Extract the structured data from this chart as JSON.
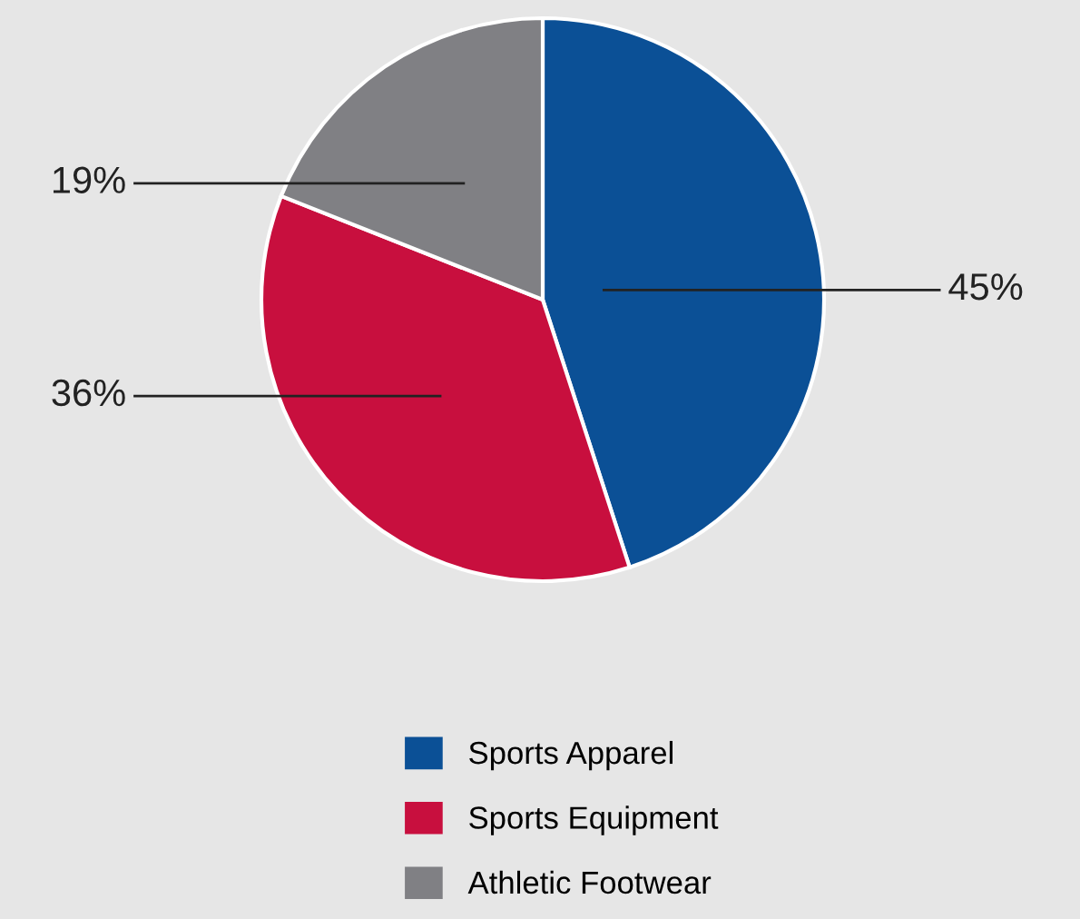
{
  "chart_data": {
    "type": "pie",
    "categories": [
      "Sports Apparel",
      "Sports Equipment",
      "Athletic Footwear"
    ],
    "values": [
      45,
      36,
      19
    ],
    "colors": [
      "#0b5096",
      "#c80f3e",
      "#808084"
    ],
    "value_labels": [
      "45%",
      "36%",
      "19%"
    ],
    "legend": "bottom"
  }
}
